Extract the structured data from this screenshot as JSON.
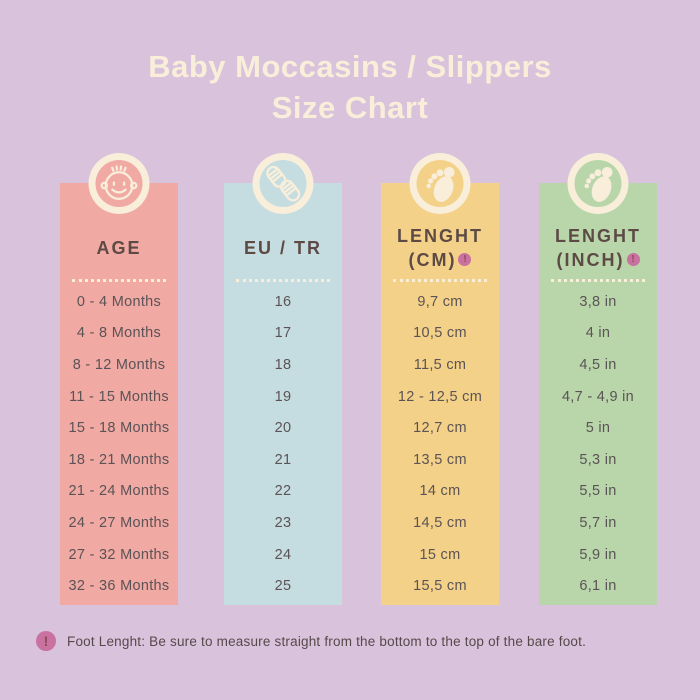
{
  "title": {
    "line1": "Baby Moccasins / Slippers",
    "line2": "Size Chart"
  },
  "columns": [
    {
      "header": "AGE",
      "icon": "baby-face-icon",
      "color": "#f1a9a4",
      "values": [
        "0 - 4 Months",
        "4 - 8 Months",
        "8 - 12 Months",
        "11 - 15 Months",
        "15 - 18 Months",
        "18 - 21 Months",
        "21 - 24 Months",
        "24 - 27 Months",
        "27 - 32 Months",
        "32 - 36 Months"
      ]
    },
    {
      "header": "EU / TR",
      "icon": "baby-booties-icon",
      "color": "#c5dde1",
      "values": [
        "16",
        "17",
        "18",
        "19",
        "20",
        "21",
        "22",
        "23",
        "24",
        "25"
      ]
    },
    {
      "header_line1": "LENGHT",
      "header_line2": "(CM)",
      "badge": "!",
      "icon": "footprint-icon",
      "color": "#f4d189",
      "values": [
        "9,7 cm",
        "10,5 cm",
        "11,5 cm",
        "12 - 12,5 cm",
        "12,7 cm",
        "13,5 cm",
        "14 cm",
        "14,5 cm",
        "15 cm",
        "15,5 cm"
      ]
    },
    {
      "header_line1": "LENGHT",
      "header_line2": "(INCH)",
      "badge": "!",
      "icon": "footprint-icon",
      "color": "#b9d6ab",
      "values": [
        "3,8 in",
        "4 in",
        "4,5 in",
        "4,7 - 4,9 in",
        "5 in",
        "5,3 in",
        "5,5 in",
        "5,7 in",
        "5,9 in",
        "6,1 in"
      ]
    }
  ],
  "footer": {
    "badge": "!",
    "note": "Foot Lenght: Be sure to measure straight from the bottom to the top of the bare foot."
  },
  "colors": {
    "background": "#d9c2db",
    "age_column": "#f1a9a4",
    "eu_tr_column": "#c5dde1",
    "cm_column": "#f4d189",
    "inch_column": "#b9d6ab",
    "cream": "#f8eeda",
    "header_text": "#5d4a45",
    "row_text": "#5b5355",
    "badge_pink": "#c9719f"
  },
  "chart_data": {
    "type": "table",
    "title": "Baby Moccasins / Slippers Size Chart",
    "columns": [
      "AGE",
      "EU / TR",
      "LENGHT (CM)",
      "LENGHT (INCH)"
    ],
    "rows": [
      [
        "0 - 4 Months",
        "16",
        "9,7 cm",
        "3,8 in"
      ],
      [
        "4 - 8 Months",
        "17",
        "10,5 cm",
        "4 in"
      ],
      [
        "8 - 12 Months",
        "18",
        "11,5 cm",
        "4,5 in"
      ],
      [
        "11 - 15 Months",
        "19",
        "12 - 12,5 cm",
        "4,7 - 4,9 in"
      ],
      [
        "15 - 18 Months",
        "20",
        "12,7 cm",
        "5 in"
      ],
      [
        "18 - 21 Months",
        "21",
        "13,5 cm",
        "5,3 in"
      ],
      [
        "21 - 24 Months",
        "22",
        "14 cm",
        "5,5 in"
      ],
      [
        "24 - 27 Months",
        "23",
        "14,5 cm",
        "5,7 in"
      ],
      [
        "27 - 32 Months",
        "24",
        "15 cm",
        "5,9 in"
      ],
      [
        "32 - 36 Months",
        "25",
        "15,5 cm",
        "6,1 in"
      ]
    ],
    "footnote": "Foot Lenght: Be sure to measure straight from the bottom to the top of the bare foot."
  }
}
